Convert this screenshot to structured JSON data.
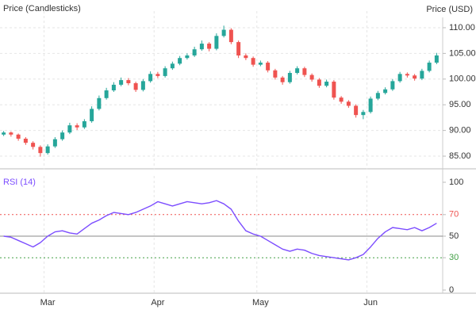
{
  "chart_data": [
    {
      "type": "candlestick",
      "title": "Price (Candlesticks)",
      "y_axis_label": "Price (USD)",
      "categories": [
        null,
        null,
        null,
        null,
        null,
        null,
        "Mar",
        null,
        null,
        null,
        null,
        null,
        null,
        null,
        null,
        null,
        null,
        null,
        null,
        null,
        null,
        "Apr",
        null,
        null,
        null,
        null,
        null,
        null,
        null,
        null,
        null,
        null,
        null,
        null,
        null,
        "May",
        null,
        null,
        null,
        null,
        null,
        null,
        null,
        null,
        null,
        null,
        null,
        null,
        null,
        null,
        "Jun",
        null,
        null,
        null,
        null,
        null,
        null,
        null,
        null,
        null
      ],
      "open": [
        89.2,
        89.6,
        89.2,
        88.4,
        87.6,
        86.8,
        85.6,
        86.9,
        88.3,
        89.6,
        91.0,
        90.6,
        91.8,
        94.2,
        96.3,
        97.8,
        98.9,
        99.8,
        99.2,
        97.9,
        99.6,
        101.0,
        100.6,
        102.1,
        103.0,
        104.1,
        104.6,
        105.8,
        106.9,
        105.9,
        108.4,
        109.6,
        107.2,
        104.6,
        104.1,
        102.8,
        103.2,
        101.7,
        100.3,
        99.4,
        101.2,
        102.1,
        100.8,
        99.9,
        98.7,
        99.5,
        96.4,
        95.6,
        94.8,
        93.0,
        93.6,
        96.2,
        97.3,
        98.0,
        99.6,
        101.0,
        100.7,
        100.1,
        101.6,
        103.2
      ],
      "high": [
        89.9,
        89.8,
        89.4,
        88.7,
        87.9,
        87.1,
        87.3,
        88.7,
        90.0,
        91.5,
        91.4,
        92.2,
        94.7,
        96.8,
        98.3,
        99.4,
        100.3,
        100.2,
        99.5,
        100.0,
        101.5,
        101.4,
        102.5,
        103.4,
        104.5,
        105.0,
        106.3,
        107.5,
        107.2,
        108.9,
        110.4,
        109.9,
        107.5,
        105.0,
        104.4,
        103.6,
        103.5,
        102.0,
        100.6,
        101.6,
        102.5,
        102.4,
        101.1,
        100.2,
        99.9,
        99.8,
        96.7,
        95.9,
        95.1,
        94.0,
        96.6,
        97.7,
        98.4,
        100.0,
        101.4,
        101.3,
        101.0,
        102.0,
        103.6,
        105.1
      ],
      "low": [
        88.9,
        88.8,
        88.0,
        87.2,
        86.3,
        84.9,
        85.3,
        86.6,
        88.0,
        89.3,
        90.1,
        90.3,
        91.5,
        93.9,
        96.0,
        97.5,
        98.6,
        98.8,
        97.5,
        97.6,
        99.3,
        100.2,
        100.3,
        101.8,
        102.7,
        103.8,
        104.3,
        105.5,
        105.4,
        105.6,
        108.1,
        106.8,
        104.1,
        103.7,
        102.4,
        102.5,
        101.3,
        99.9,
        98.9,
        99.1,
        100.9,
        100.4,
        99.5,
        98.3,
        98.4,
        96.0,
        95.2,
        94.4,
        92.5,
        92.2,
        93.3,
        95.9,
        97.0,
        97.7,
        99.3,
        100.3,
        99.7,
        99.8,
        101.3,
        102.9
      ],
      "close": [
        89.6,
        89.2,
        88.4,
        87.6,
        86.8,
        85.6,
        86.9,
        88.3,
        89.6,
        91.0,
        90.6,
        91.8,
        94.2,
        96.3,
        97.8,
        98.9,
        99.8,
        99.2,
        97.9,
        99.6,
        101.0,
        100.6,
        102.1,
        103.0,
        104.1,
        104.6,
        105.8,
        106.9,
        105.9,
        108.4,
        109.6,
        107.2,
        104.6,
        104.1,
        102.8,
        103.2,
        101.7,
        100.3,
        99.4,
        101.2,
        102.1,
        100.8,
        99.9,
        98.7,
        99.5,
        96.4,
        95.6,
        94.8,
        93.0,
        93.6,
        96.2,
        97.3,
        98.0,
        99.6,
        101.0,
        100.7,
        100.1,
        101.6,
        103.2,
        104.6
      ],
      "up_color": "#26a69a",
      "down_color": "#ef5350",
      "ylim": [
        83,
        112
      ],
      "yticks": [
        {
          "value": 85,
          "label": "85.00"
        },
        {
          "value": 90,
          "label": "90.00"
        },
        {
          "value": 95,
          "label": "95.00"
        },
        {
          "value": 100,
          "label": "100.00"
        },
        {
          "value": 105,
          "label": "105.00"
        },
        {
          "value": 110,
          "label": "110.00"
        }
      ],
      "grid": true
    },
    {
      "type": "line",
      "title": "RSI (14)",
      "color": "#7c4dff",
      "values": [
        50,
        49,
        46,
        43,
        40,
        44,
        50,
        54,
        55,
        53,
        52,
        57,
        62,
        65,
        69,
        72,
        71,
        70,
        72,
        75,
        78,
        82,
        80,
        78,
        80,
        82,
        81,
        80,
        81,
        83,
        80,
        75,
        64,
        55,
        52,
        50,
        46,
        42,
        38,
        36,
        38,
        37,
        34,
        32,
        31,
        30,
        29,
        28,
        30,
        33,
        40,
        48,
        54,
        58,
        57,
        56,
        58,
        55,
        58,
        62
      ],
      "ylim": [
        0,
        100
      ],
      "yticks": [
        0,
        30,
        50,
        70,
        100
      ],
      "hlines": [
        {
          "value": 70,
          "color": "#ef5350",
          "style": "dashed"
        },
        {
          "value": 50,
          "color": "#888888",
          "style": "solid"
        },
        {
          "value": 30,
          "color": "#43a047",
          "style": "dashed"
        }
      ]
    }
  ]
}
